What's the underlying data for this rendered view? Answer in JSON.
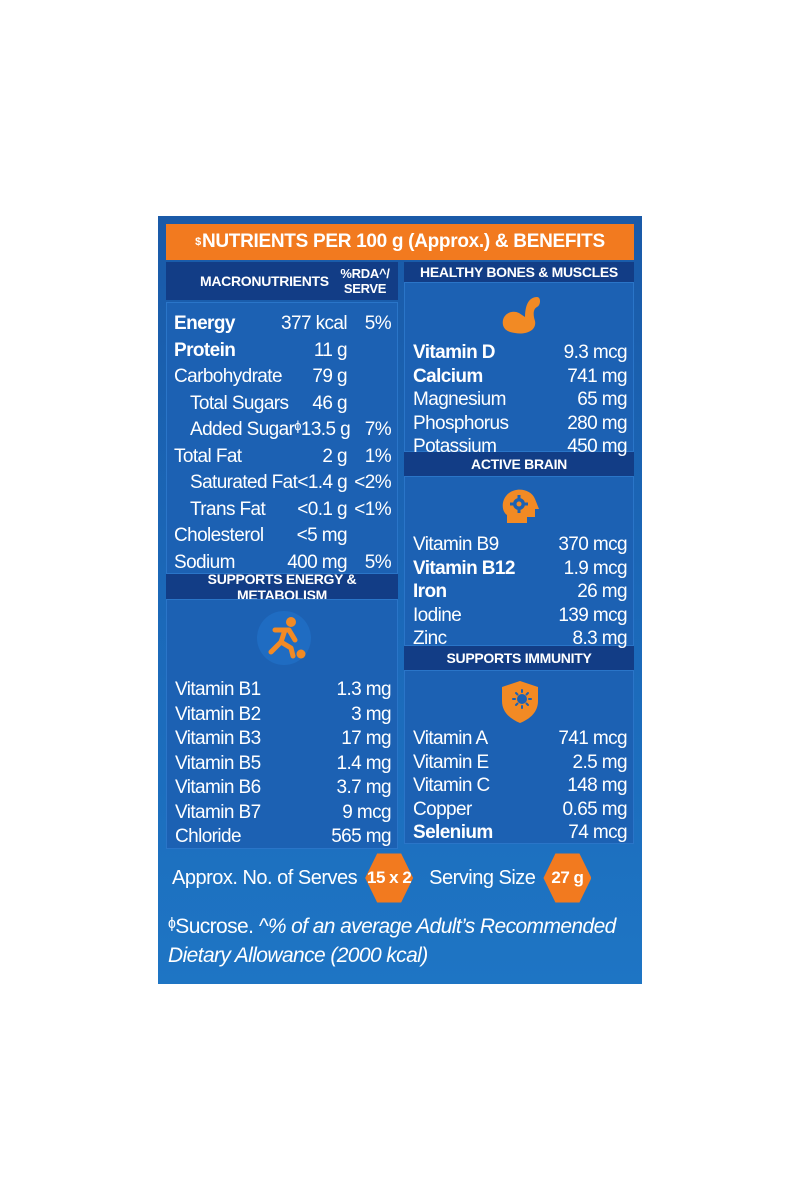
{
  "title": {
    "prefix": "$",
    "text": "NUTRIENTS PER 100 g (Approx.) & BENEFITS"
  },
  "macronutrients": {
    "header": "MACRONUTRIENTS",
    "rda_header": "%RDA^/ SERVE",
    "rows": [
      {
        "name": "Energy",
        "value": "377 kcal",
        "rda": "5%",
        "bold": true,
        "indent": false
      },
      {
        "name": "Protein",
        "value": "11 g",
        "rda": "",
        "bold": true,
        "indent": false
      },
      {
        "name": "Carbohydrate",
        "value": "79 g",
        "rda": "",
        "bold": false,
        "indent": false
      },
      {
        "name": "Total Sugars",
        "value": "46 g",
        "rda": "",
        "bold": false,
        "indent": true
      },
      {
        "name": "Added Sugarᶲ",
        "value": "13.5 g",
        "rda": "7%",
        "bold": false,
        "indent": true
      },
      {
        "name": "Total Fat",
        "value": "2 g",
        "rda": "1%",
        "bold": false,
        "indent": false
      },
      {
        "name": "Saturated Fat",
        "value": "<1.4 g",
        "rda": "<2%",
        "bold": false,
        "indent": true
      },
      {
        "name": "Trans Fat",
        "value": "<0.1 g",
        "rda": "<1%",
        "bold": false,
        "indent": true
      },
      {
        "name": "Cholesterol",
        "value": "<5 mg",
        "rda": "",
        "bold": false,
        "indent": false
      },
      {
        "name": "Sodium",
        "value": "400 mg",
        "rda": "5%",
        "bold": false,
        "indent": false
      }
    ]
  },
  "energy_metabolism": {
    "header": "SUPPORTS ENERGY & METABOLISM",
    "icon": "running-person-icon",
    "rows": [
      {
        "name": "Vitamin B1",
        "value": "1.3 mg"
      },
      {
        "name": "Vitamin B2",
        "value": "3 mg"
      },
      {
        "name": "Vitamin B3",
        "value": "17 mg"
      },
      {
        "name": "Vitamin B5",
        "value": "1.4 mg"
      },
      {
        "name": "Vitamin B6",
        "value": "3.7 mg"
      },
      {
        "name": "Vitamin B7",
        "value": "9 mcg"
      },
      {
        "name": "Chloride",
        "value": "565 mg"
      }
    ]
  },
  "bones_muscles": {
    "header": "HEALTHY BONES & MUSCLES",
    "icon": "flexed-arm-icon",
    "rows": [
      {
        "name": "Vitamin D",
        "value": "9.3 mcg",
        "bold": true
      },
      {
        "name": "Calcium",
        "value": "741 mg",
        "bold": true
      },
      {
        "name": "Magnesium",
        "value": "65 mg",
        "bold": false
      },
      {
        "name": "Phosphorus",
        "value": "280 mg",
        "bold": false
      },
      {
        "name": "Potassium",
        "value": "450 mg",
        "bold": false
      }
    ]
  },
  "active_brain": {
    "header": "ACTIVE BRAIN",
    "icon": "brain-gear-icon",
    "rows": [
      {
        "name": "Vitamin B9",
        "value": "370 mcg",
        "bold": false
      },
      {
        "name": "Vitamin B12",
        "value": "1.9 mcg",
        "bold": true
      },
      {
        "name": "Iron",
        "value": "26 mg",
        "bold": true
      },
      {
        "name": "Iodine",
        "value": "139 mcg",
        "bold": false
      },
      {
        "name": "Zinc",
        "value": "8.3 mg",
        "bold": false
      }
    ]
  },
  "immunity": {
    "header": "SUPPORTS IMMUNITY",
    "icon": "shield-virus-icon",
    "rows": [
      {
        "name": "Vitamin A",
        "value": "741 mcg",
        "bold": false
      },
      {
        "name": "Vitamin E",
        "value": "2.5 mg",
        "bold": false
      },
      {
        "name": "Vitamin C",
        "value": "148 mg",
        "bold": false
      },
      {
        "name": "Copper",
        "value": "0.65 mg",
        "bold": false
      },
      {
        "name": "Selenium",
        "value": "74 mcg",
        "bold": true
      }
    ]
  },
  "serves": {
    "label": "Approx. No. of Serves",
    "value": "15 x 2"
  },
  "serving_size": {
    "label": "Serving Size",
    "value": "27 g"
  },
  "footnote": {
    "symbol": "ᶲ",
    "line1_plain": "Sucrose.",
    "line1_italic": " ^% of an average Adult’s Recommended",
    "line2": "Dietary Allowance (2000 kcal)"
  },
  "colors": {
    "background": "#1b68b8",
    "header": "#123d86",
    "accent": "#f27a1f",
    "text": "#ffffff"
  }
}
